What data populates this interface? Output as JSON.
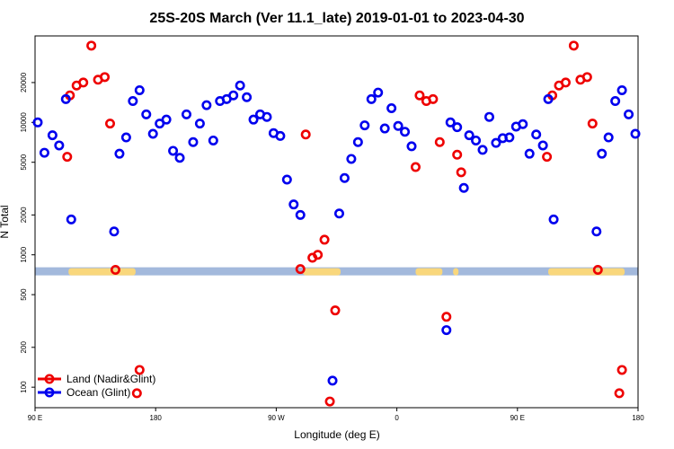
{
  "chart_data": {
    "type": "scatter",
    "title": "25S-20S March (Ver 11.1_late)   2019-01-01 to 2023-04-30",
    "xlabel": "Longitude (deg E)",
    "ylabel": "N Total",
    "x_scale": "cyclic longitude, 90E to 180 (450 deg span)",
    "xlim": [
      90,
      540
    ],
    "y_scale": "log",
    "ylim": [
      70,
      45000
    ],
    "x_ticks": [
      {
        "value": 90,
        "label": "90 E"
      },
      {
        "value": 180,
        "label": "180"
      },
      {
        "value": 270,
        "label": "90 W"
      },
      {
        "value": 360,
        "label": "0"
      },
      {
        "value": 450,
        "label": "90 E"
      },
      {
        "value": 540,
        "label": "180"
      }
    ],
    "y_ticks": [
      {
        "value": 100,
        "label": "100"
      },
      {
        "value": 200,
        "label": "200"
      },
      {
        "value": 500,
        "label": "500"
      },
      {
        "value": 1000,
        "label": "1000"
      },
      {
        "value": 2000,
        "label": "2000"
      },
      {
        "value": 5000,
        "label": "5000"
      },
      {
        "value": 10000,
        "label": "10000"
      },
      {
        "value": 20000,
        "label": "20000"
      }
    ],
    "land_band": {
      "y_value": 750,
      "ocean_color": "#a3b9dc",
      "land_color": "#f9d77c",
      "land_segments": [
        [
          115,
          165
        ],
        [
          290,
          318
        ],
        [
          374,
          394
        ],
        [
          402,
          406
        ],
        [
          473,
          530
        ]
      ]
    },
    "legend_position": "bottom-left",
    "series": [
      {
        "name": "Land (Nadir&Glint)",
        "color": "#ee0000",
        "points": [
          [
            114,
            5500
          ],
          [
            116,
            16000
          ],
          [
            121,
            19000
          ],
          [
            126,
            20000
          ],
          [
            132,
            38000
          ],
          [
            137,
            21000
          ],
          [
            142,
            22000
          ],
          [
            146,
            9800
          ],
          [
            150,
            770
          ],
          [
            166,
            90
          ],
          [
            168,
            135
          ],
          [
            288,
            780
          ],
          [
            292,
            8100
          ],
          [
            297,
            950
          ],
          [
            301,
            1000
          ],
          [
            306,
            1300
          ],
          [
            310,
            78
          ],
          [
            314,
            380
          ],
          [
            374,
            4600
          ],
          [
            377,
            16000
          ],
          [
            382,
            14500
          ],
          [
            387,
            15000
          ],
          [
            392,
            7100
          ],
          [
            397,
            340
          ],
          [
            405,
            5700
          ],
          [
            408,
            4200
          ],
          [
            472,
            5500
          ],
          [
            476,
            16000
          ],
          [
            481,
            19000
          ],
          [
            486,
            20000
          ],
          [
            492,
            38000
          ],
          [
            497,
            21000
          ],
          [
            502,
            22000
          ],
          [
            506,
            9800
          ],
          [
            510,
            770
          ],
          [
            526,
            90
          ],
          [
            528,
            135
          ]
        ]
      },
      {
        "name": "Ocean (Glint)",
        "color": "#0000ee",
        "points": [
          [
            92,
            10000
          ],
          [
            97,
            5900
          ],
          [
            103,
            8000
          ],
          [
            108,
            6700
          ],
          [
            113,
            15000
          ],
          [
            117,
            1850
          ],
          [
            149,
            1500
          ],
          [
            153,
            5800
          ],
          [
            158,
            7700
          ],
          [
            163,
            14500
          ],
          [
            168,
            17500
          ],
          [
            173,
            11500
          ],
          [
            178,
            8200
          ],
          [
            183,
            9800
          ],
          [
            188,
            10500
          ],
          [
            193,
            6100
          ],
          [
            198,
            5400
          ],
          [
            203,
            11500
          ],
          [
            208,
            7100
          ],
          [
            213,
            9800
          ],
          [
            218,
            13500
          ],
          [
            223,
            7300
          ],
          [
            228,
            14500
          ],
          [
            233,
            15000
          ],
          [
            238,
            16000
          ],
          [
            243,
            19000
          ],
          [
            248,
            15500
          ],
          [
            253,
            10500
          ],
          [
            258,
            11500
          ],
          [
            263,
            11000
          ],
          [
            268,
            8300
          ],
          [
            273,
            7900
          ],
          [
            278,
            3700
          ],
          [
            283,
            2400
          ],
          [
            288,
            2000
          ],
          [
            312,
            112
          ],
          [
            317,
            2050
          ],
          [
            321,
            3800
          ],
          [
            326,
            5300
          ],
          [
            331,
            7100
          ],
          [
            336,
            9500
          ],
          [
            341,
            15000
          ],
          [
            346,
            16800
          ],
          [
            351,
            9000
          ],
          [
            356,
            12800
          ],
          [
            361,
            9400
          ],
          [
            366,
            8500
          ],
          [
            371,
            6600
          ],
          [
            397,
            270
          ],
          [
            400,
            10000
          ],
          [
            405,
            9200
          ],
          [
            410,
            3200
          ],
          [
            414,
            8000
          ],
          [
            419,
            7300
          ],
          [
            424,
            6200
          ],
          [
            429,
            11000
          ],
          [
            434,
            7000
          ],
          [
            439,
            7600
          ],
          [
            444,
            7700
          ],
          [
            449,
            9300
          ],
          [
            454,
            9700
          ],
          [
            459,
            5800
          ],
          [
            464,
            8100
          ],
          [
            469,
            6700
          ],
          [
            473,
            15000
          ],
          [
            477,
            1850
          ],
          [
            509,
            1500
          ],
          [
            513,
            5800
          ],
          [
            518,
            7700
          ],
          [
            523,
            14500
          ],
          [
            528,
            17500
          ],
          [
            533,
            11500
          ],
          [
            538,
            8200
          ]
        ]
      }
    ]
  }
}
